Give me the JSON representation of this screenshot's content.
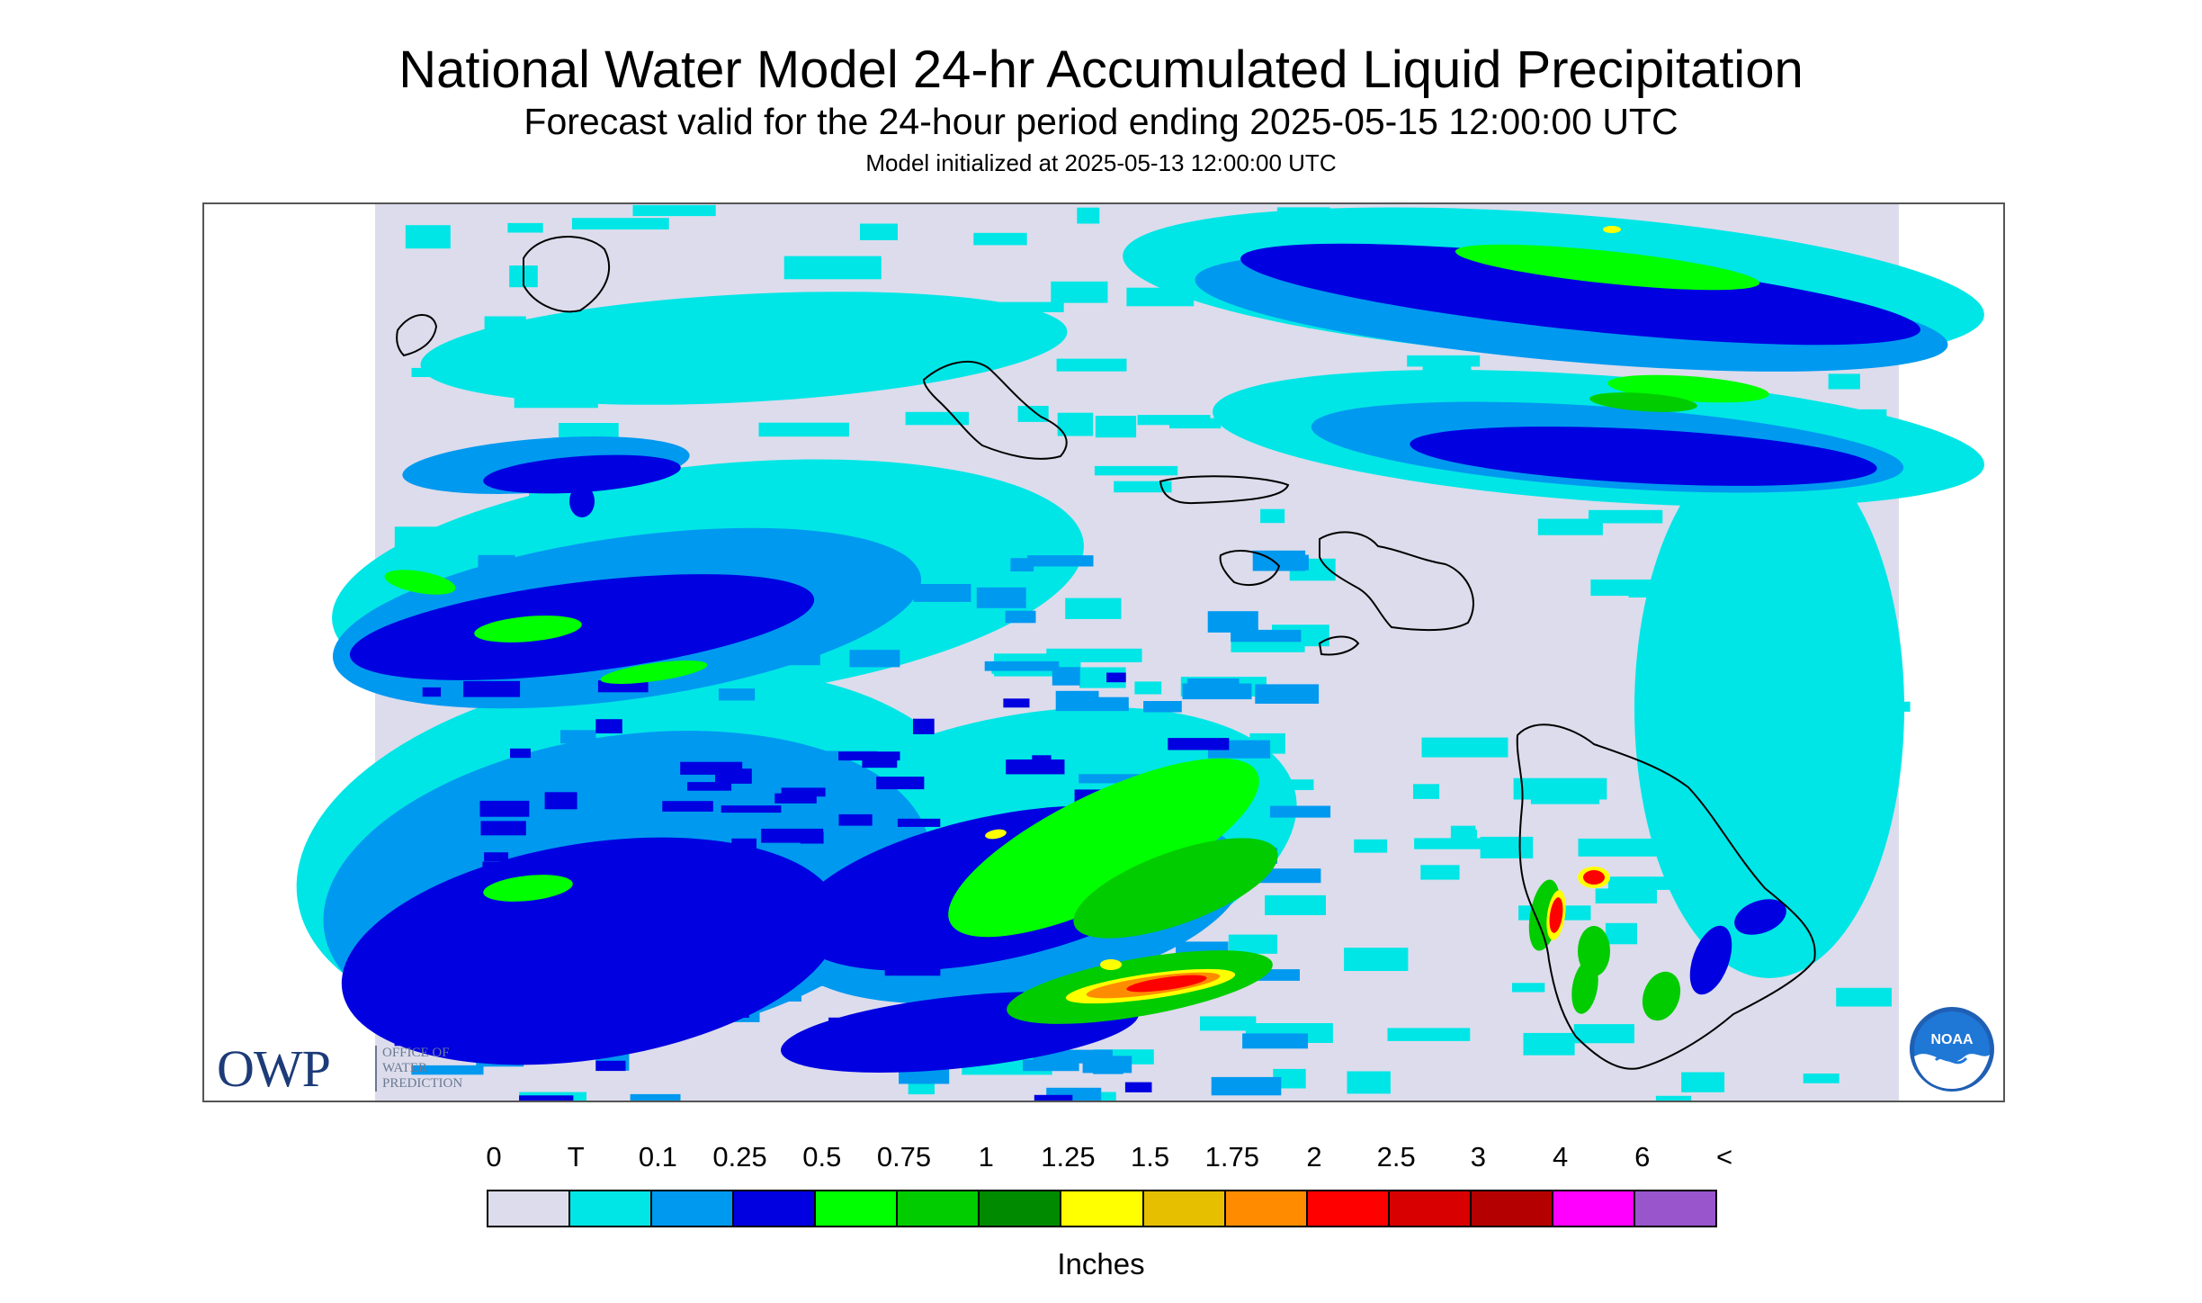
{
  "title": "National Water Model 24-hr Accumulated Liquid Precipitation",
  "subtitle": "Forecast valid for the 24-hour period ending 2025-05-15 12:00:00 UTC",
  "init_line": "Model initialized at 2025-05-13 12:00:00 UTC",
  "owp_logo": {
    "letters": "OWP",
    "subtitle": "OFFICE OF\nWATER\nPREDICTION"
  },
  "noaa_logo": {
    "text": "NOAA",
    "icon": "noaa-seal-icon"
  },
  "legend": {
    "ticks": [
      "0",
      "T",
      "0.1",
      "0.25",
      "0.5",
      "0.75",
      "1",
      "1.25",
      "1.5",
      "1.75",
      "2",
      "2.5",
      "3",
      "4",
      "6",
      "<"
    ],
    "colors": [
      "#dcdcec",
      "#00e6e6",
      "#0099f0",
      "#0000e0",
      "#00ff00",
      "#00cc00",
      "#008a00",
      "#ffff00",
      "#e6c000",
      "#ff8c00",
      "#ff0000",
      "#d80000",
      "#b40000",
      "#ff00ff",
      "#9955cc"
    ],
    "units": "Inches"
  },
  "map_colors": {
    "background": "#dcdcec",
    "trace": "#00e6e6",
    "light": "#0099f0",
    "moderate": "#0000e0",
    "heavy1": "#00ff00",
    "heavy2": "#00cc00",
    "heavy3": "#008a00",
    "extreme1": "#ffff00",
    "extreme2": "#ff8c00",
    "extreme3": "#ff0000",
    "coastline": "#000000"
  }
}
